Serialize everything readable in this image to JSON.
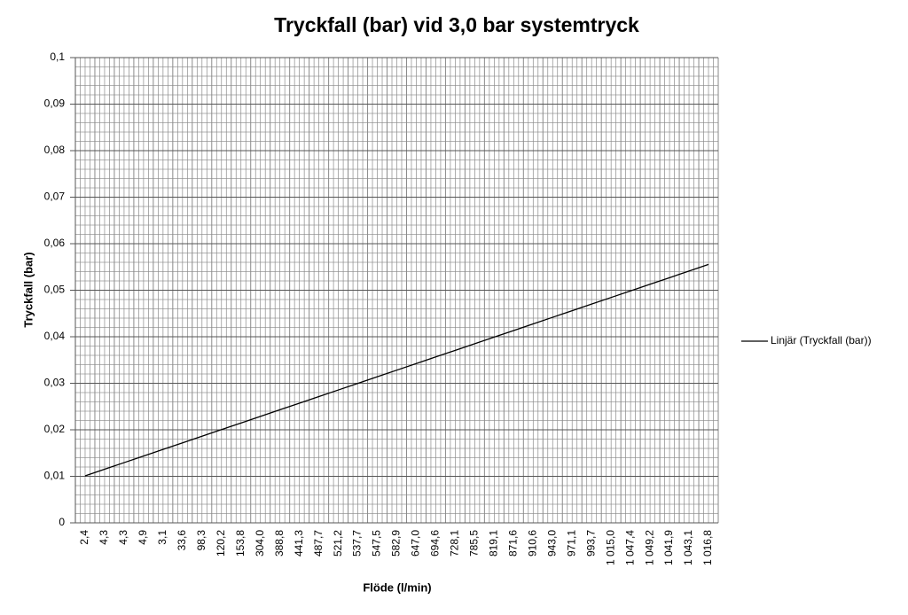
{
  "chart_data": {
    "type": "line",
    "title": "Tryckfall (bar) vid 3,0 bar systemtryck",
    "x_label": "Flöde (l/min)",
    "y_label": "Tryckfall (bar)",
    "categories": [
      "2,4",
      "4,3",
      "4,3",
      "4,9",
      "3,1",
      "33,6",
      "98,3",
      "120,2",
      "153,8",
      "304,0",
      "388,8",
      "441,3",
      "487,7",
      "521,2",
      "537,7",
      "547,5",
      "582,9",
      "647,0",
      "694,6",
      "728,1",
      "785,5",
      "819,1",
      "871,6",
      "910,6",
      "943,0",
      "971,1",
      "993,7",
      "1 015,0",
      "1 047,4",
      "1 049,2",
      "1 041,9",
      "1 043,1",
      "1 016,8"
    ],
    "series": [
      {
        "name": "Linjär (Tryckfall (bar))",
        "color": "#000000",
        "values": [
          0.0101,
          0.01152,
          0.01294,
          0.01436,
          0.01578,
          0.0172,
          0.01862,
          0.02004,
          0.02146,
          0.02288,
          0.0243,
          0.02572,
          0.02714,
          0.02856,
          0.02998,
          0.0314,
          0.03282,
          0.03424,
          0.03566,
          0.03708,
          0.0385,
          0.03992,
          0.04134,
          0.04276,
          0.04418,
          0.0456,
          0.04702,
          0.04844,
          0.04986,
          0.05128,
          0.0527,
          0.05412,
          0.05554
        ]
      }
    ],
    "ylim": [
      0,
      0.1
    ],
    "yticks": [
      0,
      {
        "value": 0.01,
        "label": "0,01"
      },
      {
        "value": 0.02,
        "label": "0,02"
      },
      {
        "value": 0.03,
        "label": "0,03"
      },
      {
        "value": 0.04,
        "label": "0,04"
      },
      {
        "value": 0.05,
        "label": "0,05"
      },
      {
        "value": 0.06,
        "label": "0,06"
      },
      {
        "value": 0.07,
        "label": "0,07"
      },
      {
        "value": 0.08,
        "label": "0,08"
      },
      {
        "value": 0.09,
        "label": "0,09"
      },
      {
        "value": 0.1,
        "label": "0,1"
      }
    ],
    "grid": true,
    "minor_grid": true,
    "legend": "right"
  }
}
